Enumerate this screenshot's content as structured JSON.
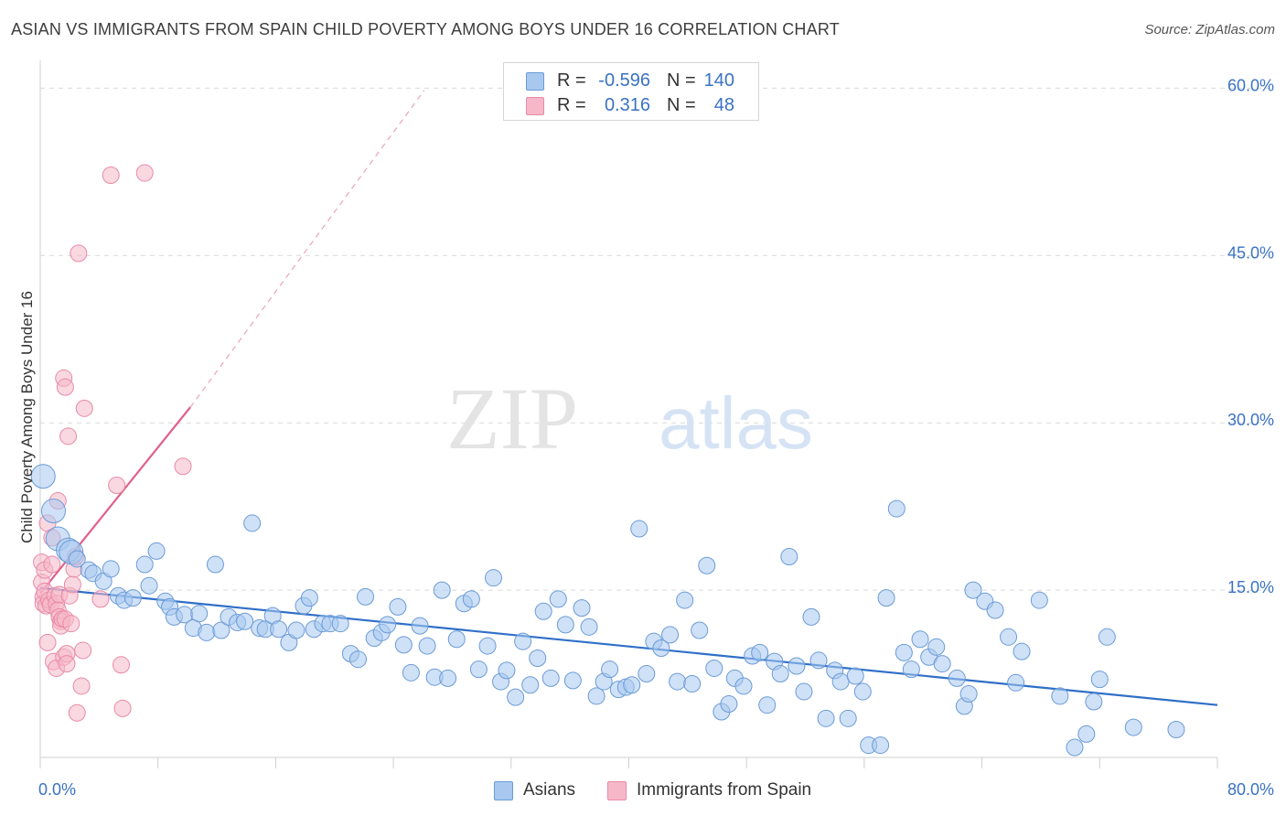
{
  "title": "ASIAN VS IMMIGRANTS FROM SPAIN CHILD POVERTY AMONG BOYS UNDER 16 CORRELATION CHART",
  "source": "Source: ZipAtlas.com",
  "watermark": {
    "zip": "ZIP",
    "atlas": "atlas"
  },
  "colors": {
    "asian_fill": "#a8c8f0",
    "asian_stroke": "#6b9bd6",
    "asian_line": "#2f6fc8",
    "spain_fill": "#f6b8c9",
    "spain_stroke": "#e88aa6",
    "spain_line": "#e0608a",
    "axis_text": "#3a72c4",
    "grid": "#d9d9d9"
  },
  "legend": {
    "rows": [
      {
        "r_label": "R =",
        "r_value": "-0.596",
        "n_label": "N =",
        "n_value": "140"
      },
      {
        "r_label": "R =",
        "r_value": "0.316",
        "n_label": "N =",
        "n_value": "48"
      }
    ]
  },
  "bottom_legend": [
    "Asians",
    "Immigrants from Spain"
  ],
  "chart_data": {
    "type": "scatter",
    "title": "ASIAN VS IMMIGRANTS FROM SPAIN CHILD POVERTY AMONG BOYS UNDER 16 CORRELATION CHART",
    "xlabel": "",
    "ylabel": "Child Poverty Among Boys Under 16",
    "xlim": [
      0,
      80
    ],
    "ylim": [
      0,
      62
    ],
    "x_tick_labels": [
      "0.0%",
      "80.0%"
    ],
    "y_ticks": [
      15,
      30,
      45,
      60
    ],
    "y_tick_labels": [
      "15.0%",
      "30.0%",
      "45.0%",
      "60.0%"
    ],
    "grid": true,
    "legend_placement": "top-center",
    "series": [
      {
        "name": "Asians",
        "R": -0.596,
        "N": 140,
        "trend": {
          "x": [
            0,
            80
          ],
          "y": [
            15.2,
            4.7
          ],
          "style": "solid"
        },
        "points": [
          [
            0.2,
            25.2
          ],
          [
            0.9,
            22.1
          ],
          [
            1.2,
            19.6
          ],
          [
            1.9,
            18.6
          ],
          [
            2.1,
            18.4
          ],
          [
            2.5,
            17.8
          ],
          [
            3.3,
            16.8
          ],
          [
            3.6,
            16.5
          ],
          [
            4.3,
            15.8
          ],
          [
            4.8,
            16.9
          ],
          [
            5.3,
            14.5
          ],
          [
            5.7,
            14.1
          ],
          [
            6.3,
            14.3
          ],
          [
            7.1,
            17.3
          ],
          [
            7.4,
            15.4
          ],
          [
            7.9,
            18.5
          ],
          [
            8.5,
            14.0
          ],
          [
            8.8,
            13.5
          ],
          [
            9.1,
            12.6
          ],
          [
            9.8,
            12.8
          ],
          [
            10.4,
            11.6
          ],
          [
            10.8,
            12.9
          ],
          [
            11.3,
            11.2
          ],
          [
            11.9,
            17.3
          ],
          [
            12.3,
            11.4
          ],
          [
            12.8,
            12.6
          ],
          [
            13.4,
            12.1
          ],
          [
            13.9,
            12.2
          ],
          [
            14.4,
            21.0
          ],
          [
            14.9,
            11.6
          ],
          [
            15.3,
            11.5
          ],
          [
            15.8,
            12.7
          ],
          [
            16.2,
            11.5
          ],
          [
            16.9,
            10.3
          ],
          [
            17.4,
            11.4
          ],
          [
            17.9,
            13.6
          ],
          [
            18.3,
            14.3
          ],
          [
            18.6,
            11.5
          ],
          [
            19.2,
            12.0
          ],
          [
            19.7,
            12.0
          ],
          [
            20.4,
            12.0
          ],
          [
            21.1,
            9.3
          ],
          [
            21.6,
            8.8
          ],
          [
            22.1,
            14.4
          ],
          [
            22.7,
            10.7
          ],
          [
            23.2,
            11.2
          ],
          [
            23.6,
            11.9
          ],
          [
            24.3,
            13.5
          ],
          [
            24.7,
            10.1
          ],
          [
            25.2,
            7.6
          ],
          [
            25.8,
            11.8
          ],
          [
            26.3,
            10.0
          ],
          [
            26.8,
            7.2
          ],
          [
            27.3,
            15.0
          ],
          [
            27.7,
            7.1
          ],
          [
            28.3,
            10.6
          ],
          [
            28.8,
            13.8
          ],
          [
            29.3,
            14.2
          ],
          [
            29.8,
            7.9
          ],
          [
            30.4,
            10.0
          ],
          [
            30.8,
            16.1
          ],
          [
            31.3,
            6.8
          ],
          [
            31.7,
            7.8
          ],
          [
            32.3,
            5.4
          ],
          [
            32.8,
            10.4
          ],
          [
            33.3,
            6.5
          ],
          [
            33.8,
            8.9
          ],
          [
            34.2,
            13.1
          ],
          [
            34.7,
            7.1
          ],
          [
            35.2,
            14.2
          ],
          [
            35.7,
            11.9
          ],
          [
            36.2,
            6.9
          ],
          [
            36.8,
            13.4
          ],
          [
            37.3,
            11.7
          ],
          [
            37.8,
            5.5
          ],
          [
            38.3,
            6.8
          ],
          [
            38.7,
            7.9
          ],
          [
            39.3,
            6.1
          ],
          [
            39.8,
            6.3
          ],
          [
            40.2,
            6.5
          ],
          [
            40.7,
            20.5
          ],
          [
            41.2,
            7.5
          ],
          [
            41.7,
            10.4
          ],
          [
            42.2,
            9.8
          ],
          [
            42.8,
            11.0
          ],
          [
            43.3,
            6.8
          ],
          [
            43.8,
            14.1
          ],
          [
            44.3,
            6.6
          ],
          [
            44.8,
            11.4
          ],
          [
            45.3,
            17.2
          ],
          [
            45.8,
            8.0
          ],
          [
            46.3,
            4.1
          ],
          [
            46.8,
            4.8
          ],
          [
            47.2,
            7.1
          ],
          [
            47.8,
            6.4
          ],
          [
            48.4,
            9.1
          ],
          [
            48.9,
            9.4
          ],
          [
            49.4,
            4.7
          ],
          [
            49.9,
            8.6
          ],
          [
            50.3,
            7.5
          ],
          [
            50.9,
            18.0
          ],
          [
            51.4,
            8.2
          ],
          [
            51.9,
            5.9
          ],
          [
            52.4,
            12.6
          ],
          [
            52.9,
            8.7
          ],
          [
            53.4,
            3.5
          ],
          [
            54.0,
            7.8
          ],
          [
            54.4,
            6.8
          ],
          [
            54.9,
            3.5
          ],
          [
            55.4,
            7.3
          ],
          [
            55.9,
            5.9
          ],
          [
            56.3,
            1.1
          ],
          [
            57.1,
            1.1
          ],
          [
            57.5,
            14.3
          ],
          [
            58.2,
            22.3
          ],
          [
            58.7,
            9.4
          ],
          [
            59.2,
            7.9
          ],
          [
            59.8,
            10.6
          ],
          [
            60.4,
            9.0
          ],
          [
            60.9,
            9.9
          ],
          [
            61.3,
            8.4
          ],
          [
            62.3,
            7.1
          ],
          [
            62.8,
            4.6
          ],
          [
            63.1,
            5.7
          ],
          [
            63.4,
            15.0
          ],
          [
            64.2,
            14.0
          ],
          [
            64.9,
            13.2
          ],
          [
            65.8,
            10.8
          ],
          [
            66.3,
            6.7
          ],
          [
            66.7,
            9.5
          ],
          [
            67.9,
            14.1
          ],
          [
            69.3,
            5.5
          ],
          [
            70.3,
            0.9
          ],
          [
            71.1,
            2.1
          ],
          [
            71.6,
            5.0
          ],
          [
            72.0,
            7.0
          ],
          [
            72.5,
            10.8
          ],
          [
            74.3,
            2.7
          ],
          [
            77.2,
            2.5
          ]
        ]
      },
      {
        "name": "Immigrants from Spain",
        "R": 0.316,
        "N": 48,
        "trend": {
          "x": [
            0,
            10.2
          ],
          "y": [
            14.7,
            31.4
          ],
          "style": "solid",
          "extended_x": [
            10.2,
            26.1
          ],
          "extended_y": [
            31.4,
            59.8
          ],
          "extended_style": "dashed"
        },
        "points": [
          [
            0.1,
            17.5
          ],
          [
            0.1,
            15.7
          ],
          [
            0.2,
            14.4
          ],
          [
            0.2,
            13.8
          ],
          [
            0.3,
            16.8
          ],
          [
            0.3,
            14.9
          ],
          [
            0.4,
            13.6
          ],
          [
            0.5,
            10.3
          ],
          [
            0.5,
            21.0
          ],
          [
            0.6,
            14.1
          ],
          [
            0.7,
            13.7
          ],
          [
            0.8,
            17.3
          ],
          [
            0.8,
            19.7
          ],
          [
            0.9,
            8.6
          ],
          [
            1.0,
            14.5
          ],
          [
            1.1,
            8.0
          ],
          [
            1.1,
            13.8
          ],
          [
            1.2,
            13.2
          ],
          [
            1.2,
            23.0
          ],
          [
            1.3,
            14.6
          ],
          [
            1.3,
            12.6
          ],
          [
            1.4,
            12.2
          ],
          [
            1.4,
            11.8
          ],
          [
            1.5,
            12.4
          ],
          [
            1.6,
            9.0
          ],
          [
            1.6,
            34.0
          ],
          [
            1.7,
            33.2
          ],
          [
            1.7,
            12.4
          ],
          [
            1.8,
            9.3
          ],
          [
            1.8,
            8.4
          ],
          [
            1.9,
            28.8
          ],
          [
            2.0,
            14.5
          ],
          [
            2.1,
            12.0
          ],
          [
            2.2,
            15.5
          ],
          [
            2.3,
            16.9
          ],
          [
            2.4,
            18.0
          ],
          [
            2.5,
            4.0
          ],
          [
            2.6,
            45.2
          ],
          [
            2.8,
            6.4
          ],
          [
            2.9,
            9.6
          ],
          [
            3.0,
            31.3
          ],
          [
            4.1,
            14.2
          ],
          [
            4.8,
            52.2
          ],
          [
            5.2,
            24.4
          ],
          [
            5.5,
            8.3
          ],
          [
            5.6,
            4.4
          ],
          [
            7.1,
            52.4
          ],
          [
            9.7,
            26.1
          ]
        ]
      }
    ]
  }
}
